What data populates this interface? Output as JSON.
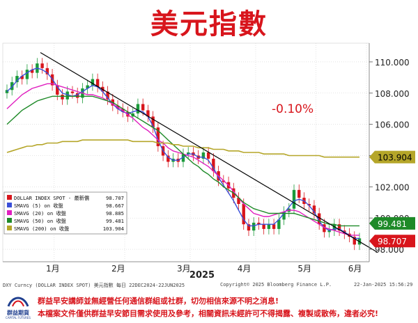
{
  "title": "美元指數",
  "change_label": "-0.10%",
  "chart_data": {
    "type": "line",
    "title": "美元指數",
    "xlabel": "2025",
    "ylabel": "",
    "x_tick_labels": [
      "1月",
      "2月",
      "3月",
      "4月",
      "5月",
      "6月"
    ],
    "ylim": [
      97.2,
      111.2
    ],
    "y_ticks": [
      98.0,
      100.0,
      102.0,
      104.0,
      106.0,
      108.0,
      110.0
    ],
    "y_tick_labels": [
      "98.000",
      "100.000",
      "102.000",
      "104.000",
      "106.000",
      "108.000",
      "110.000"
    ],
    "grid": true,
    "legend_position": "bottom-left",
    "colors": {
      "price_up": "#1a9a3a",
      "price_down": "#d8151c",
      "smavg5": "#3a4fd8",
      "smavg20": "#e01fbf",
      "smavg50": "#1e8a28",
      "smavg200": "#b5a629",
      "trendline": "#000000"
    },
    "last_value_labels": [
      {
        "value": "103.904",
        "bg": "#b5a629",
        "fg": "#000000"
      },
      {
        "value": "99.481",
        "bg": "#1e8a28",
        "fg": "#ffffff"
      },
      {
        "value": "98.707",
        "bg": "#d8151c",
        "fg": "#ffffff"
      }
    ],
    "legend": [
      {
        "name": "DOLLAR INDEX SPOT - 最新價",
        "value": "98.707",
        "color": "#d8151c"
      },
      {
        "name": "SMAVG (5)  on 收盤",
        "value": "98.667",
        "color": "#3a4fd8"
      },
      {
        "name": "SMAVG (20)  on 收盤",
        "value": "98.885",
        "color": "#e01fbf"
      },
      {
        "name": "SMAVG (50)  on 收盤",
        "value": "99.481",
        "color": "#1e8a28"
      },
      {
        "name": "SMAVG (200)  on 收盤",
        "value": "103.904",
        "color": "#b5a629"
      }
    ],
    "series": [
      {
        "name": "DOLLAR INDEX SPOT",
        "kind": "candlestick",
        "values": [
          108.2,
          108.7,
          109.1,
          108.9,
          109.5,
          109.3,
          109.9,
          109.6,
          109.2,
          108.5,
          107.9,
          107.6,
          108.1,
          108.0,
          107.7,
          108.3,
          108.5,
          108.9,
          108.4,
          108.1,
          107.6,
          107.2,
          107.0,
          106.8,
          106.5,
          106.7,
          107.3,
          106.9,
          106.5,
          105.8,
          104.6,
          104.0,
          103.6,
          103.8,
          103.6,
          104.1,
          104.2,
          104.0,
          103.8,
          104.2,
          103.8,
          103.0,
          102.4,
          102.3,
          101.9,
          101.3,
          100.9,
          99.6,
          99.2,
          99.7,
          99.6,
          99.3,
          99.6,
          99.3,
          99.9,
          100.4,
          100.6,
          101.8,
          101.3,
          100.9,
          100.8,
          100.3,
          99.6,
          99.1,
          99.2,
          99.6,
          99.2,
          99.0,
          98.8,
          98.3,
          98.7
        ]
      },
      {
        "name": "SMAVG (5)",
        "values": [
          108.1,
          108.4,
          108.8,
          109.1,
          109.3,
          109.5,
          109.6,
          109.5,
          109.3,
          108.9,
          108.4,
          108.0,
          107.9,
          107.8,
          107.9,
          108.1,
          108.3,
          108.5,
          108.4,
          108.1,
          107.7,
          107.3,
          107.0,
          106.8,
          106.7,
          106.8,
          106.9,
          106.8,
          106.5,
          105.9,
          105.0,
          104.3,
          103.9,
          103.7,
          103.7,
          103.9,
          104.1,
          104.1,
          103.9,
          103.9,
          103.7,
          103.2,
          102.6,
          102.1,
          101.6,
          101.1,
          100.5,
          99.9,
          99.5,
          99.5,
          99.6,
          99.6,
          99.6,
          99.6,
          99.9,
          100.3,
          100.7,
          101.1,
          101.2,
          101.1,
          100.8,
          100.4,
          99.8,
          99.4,
          99.2,
          99.3,
          99.3,
          99.1,
          98.9,
          98.7,
          98.7
        ]
      },
      {
        "name": "SMAVG (20)",
        "values": [
          107.0,
          107.3,
          107.6,
          107.9,
          108.1,
          108.3,
          108.4,
          108.5,
          108.6,
          108.6,
          108.5,
          108.4,
          108.3,
          108.2,
          108.1,
          108.0,
          107.9,
          107.9,
          107.8,
          107.7,
          107.5,
          107.3,
          107.1,
          106.9,
          106.6,
          106.4,
          106.1,
          105.8,
          105.6,
          105.3,
          105.0,
          104.8,
          104.5,
          104.3,
          104.2,
          104.1,
          104.0,
          103.9,
          103.7,
          103.5,
          103.3,
          103.0,
          102.7,
          102.4,
          102.1,
          101.7,
          101.3,
          100.9,
          100.6,
          100.3,
          100.2,
          100.1,
          100.1,
          100.2,
          100.3,
          100.4,
          100.5,
          100.5,
          100.4,
          100.2,
          100.0,
          99.8,
          99.6,
          99.4,
          99.3,
          99.2,
          99.1,
          99.0,
          98.9,
          98.9,
          98.9
        ]
      },
      {
        "name": "SMAVG (50)",
        "values": [
          106.0,
          106.3,
          106.6,
          106.9,
          107.1,
          107.3,
          107.5,
          107.6,
          107.7,
          107.8,
          107.8,
          107.8,
          107.8,
          107.8,
          107.8,
          107.8,
          107.8,
          107.8,
          107.7,
          107.6,
          107.5,
          107.4,
          107.2,
          107.0,
          106.8,
          106.6,
          106.4,
          106.2,
          106.0,
          105.8,
          105.6,
          105.3,
          105.0,
          104.7,
          104.4,
          104.1,
          103.8,
          103.5,
          103.3,
          103.0,
          102.8,
          102.5,
          102.3,
          102.0,
          101.8,
          101.6,
          101.3,
          101.0,
          100.8,
          100.6,
          100.5,
          100.4,
          100.3,
          100.3,
          100.3,
          100.3,
          100.3,
          100.3,
          100.2,
          100.1,
          100.0,
          99.9,
          99.8,
          99.7,
          99.6,
          99.6,
          99.5,
          99.5,
          99.5,
          99.5,
          99.5
        ]
      },
      {
        "name": "SMAVG (200)",
        "values": [
          104.2,
          104.3,
          104.4,
          104.5,
          104.6,
          104.6,
          104.7,
          104.7,
          104.8,
          104.8,
          104.8,
          104.9,
          104.9,
          104.9,
          104.9,
          105.0,
          105.0,
          105.0,
          105.0,
          105.0,
          105.0,
          105.0,
          105.0,
          105.0,
          105.0,
          104.9,
          104.9,
          104.9,
          104.9,
          104.9,
          104.8,
          104.8,
          104.8,
          104.7,
          104.7,
          104.6,
          104.6,
          104.6,
          104.5,
          104.5,
          104.5,
          104.4,
          104.4,
          104.4,
          104.3,
          104.3,
          104.3,
          104.2,
          104.2,
          104.2,
          104.2,
          104.1,
          104.1,
          104.1,
          104.1,
          104.1,
          104.0,
          104.0,
          104.0,
          104.0,
          104.0,
          104.0,
          104.0,
          103.9,
          103.9,
          103.9,
          103.9,
          103.9,
          103.9,
          103.9,
          103.9
        ]
      }
    ],
    "trendline": {
      "start_value": 110.6,
      "end_value": 97.8
    }
  },
  "footer": {
    "left": "DXY Curncy (DOLLAR INDEX SPOT) 美元指數  每日  22DEC2024-22JUN2025",
    "center": "Copyright© 2025 Bloomberg Finance L.P.",
    "right": "22-Jan-2025 15:56:29"
  },
  "logo": {
    "name": "群益期貨",
    "sub": "CAPITAL FUTURES"
  },
  "disclaimer": {
    "line1": "群益早安講師並無經營任何通信群組或社群，切勿相信來源不明之消息!",
    "line2": "本檔案文件僅供群益早安節目需求使用及參考，相關資訊未經許可不得揭露、複製或散佈，違者必究!"
  }
}
